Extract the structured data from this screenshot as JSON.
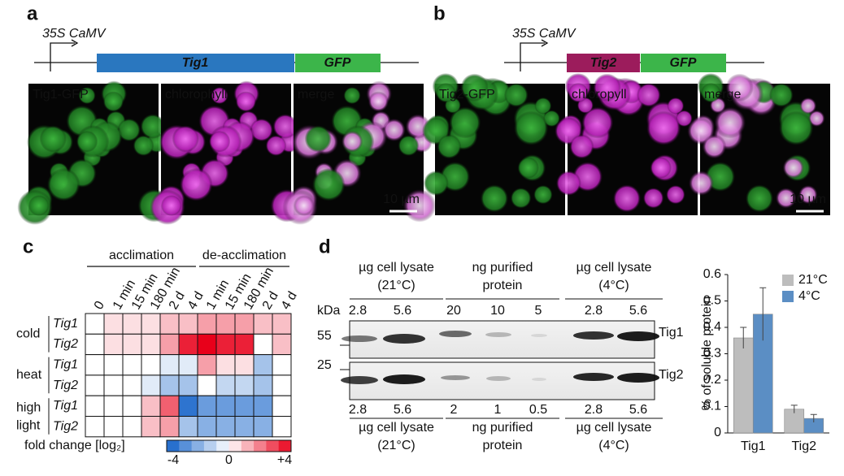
{
  "panel_a": {
    "letter": "a",
    "promoter": "35S CaMV",
    "gene": "Tig1",
    "tag": "GFP",
    "images": [
      "Tig1-GFP",
      "chlorophyll",
      "merge"
    ],
    "scale_bar": "10 µm"
  },
  "panel_b": {
    "letter": "b",
    "promoter": "35S CaMV",
    "gene": "Tig2",
    "tag": "GFP",
    "images": [
      "Tig2-GFP",
      "chloropyll",
      "merge"
    ],
    "scale_bar": "10 µm"
  },
  "panel_c": {
    "letter": "c",
    "groups": [
      "acclimation",
      "de-acclimation"
    ],
    "columns": [
      "0",
      "1 min",
      "15 min",
      "180 min",
      "2 d",
      "4 d",
      "1 min",
      "15 min",
      "180 min",
      "2 d",
      "4 d"
    ],
    "conditions": [
      [
        "cold"
      ],
      [
        "heat"
      ],
      [
        "high",
        "light"
      ]
    ],
    "rows": [
      {
        "gene": "Tig1",
        "values": [
          0,
          0.5,
          0.5,
          0.5,
          1,
          1,
          1.5,
          1.5,
          1.5,
          1,
          1
        ]
      },
      {
        "gene": "Tig2",
        "values": [
          0,
          0.5,
          0.5,
          0.5,
          1.5,
          3.5,
          4,
          3.5,
          3.5,
          0,
          1
        ]
      },
      {
        "gene": "Tig1",
        "values": [
          0,
          0,
          0,
          0,
          -0.5,
          -0.5,
          1.5,
          0.5,
          0.5,
          -1.5,
          0
        ]
      },
      {
        "gene": "Tig2",
        "values": [
          0,
          0,
          0,
          -0.5,
          -1.5,
          -1.5,
          0,
          -1,
          -1,
          -1.5,
          0
        ]
      },
      {
        "gene": "Tig1",
        "values": [
          0,
          0,
          0,
          1,
          2.5,
          -3.5,
          -2.5,
          -2.5,
          -2.5,
          -2.5,
          0
        ]
      },
      {
        "gene": "Tig2",
        "values": [
          0,
          0,
          0,
          1,
          1.5,
          -1.5,
          -2,
          -2,
          -2,
          -2,
          0
        ]
      }
    ],
    "colorbar_label": "fold change [log₂]",
    "colorbar_lim": [
      -4,
      4
    ],
    "colorbar_ticks": [
      -4,
      0,
      {
        "value": 4,
        "label": "+4"
      }
    ]
  },
  "panel_d": {
    "letter": "d",
    "unit": "kDa",
    "markers": [
      "55",
      "25"
    ],
    "blots": [
      "Tig1",
      "Tig2"
    ],
    "top_groups": [
      [
        "µg cell lysate",
        "(21°C)"
      ],
      [
        "ng purified",
        "protein"
      ],
      [
        "µg cell lysate",
        "(4°C)"
      ]
    ],
    "top_lanes": [
      "2.8",
      "5.6",
      "20",
      "10",
      "5",
      "2.8",
      "5.6"
    ],
    "bottom_lanes": [
      "2.8",
      "5.6",
      "2",
      "1",
      "0.5",
      "2.8",
      "5.6"
    ],
    "bottom_groups": [
      [
        "µg cell lysate",
        "(21°C)"
      ],
      [
        "ng purified",
        "protein"
      ],
      [
        "µg cell lysate",
        "(4°C)"
      ]
    ]
  },
  "chart_data": {
    "type": "bar",
    "y_label": "% of soluble protein",
    "categories": [
      "Tig1",
      "Tig2"
    ],
    "series": [
      {
        "name": "21°C",
        "color": "#bdbdbd",
        "values": [
          0.36,
          0.09
        ],
        "errors": [
          0.04,
          0.015
        ]
      },
      {
        "name": "4°C",
        "color": "#5b8ec4",
        "values": [
          0.45,
          0.055
        ],
        "errors": [
          0.1,
          0.015
        ]
      }
    ],
    "ylim": [
      0,
      0.6
    ],
    "yticks": [
      0,
      0.1,
      0.2,
      0.3,
      0.4,
      0.5,
      0.6
    ],
    "legend": "upper right"
  }
}
